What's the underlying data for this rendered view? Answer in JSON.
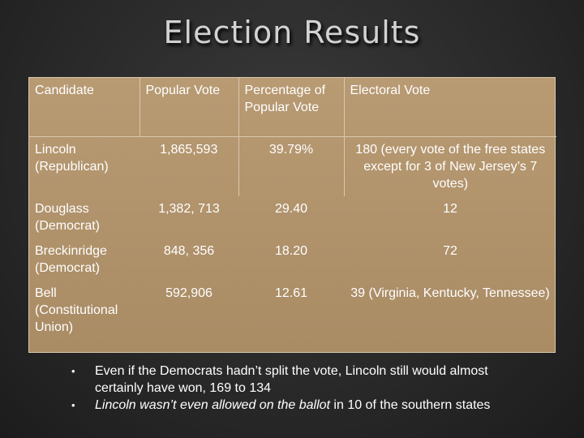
{
  "title": "Election Results",
  "table": {
    "headers": [
      "Candidate",
      "Popular Vote",
      "Percentage of Popular Vote",
      "Electoral Vote"
    ],
    "rows": [
      {
        "candidate": "Lincoln (Republican)",
        "popular_vote": "1,865,593",
        "percentage": "39.79%",
        "electoral_vote": "180 (every vote of the free states except for 3 of New Jersey’s 7 votes)"
      },
      {
        "candidate": "Douglass (Democrat)",
        "popular_vote": "1,382, 713",
        "percentage": "29.40",
        "electoral_vote": "12"
      },
      {
        "candidate": "Breckinridge (Democrat)",
        "popular_vote": "848, 356",
        "percentage": "18.20",
        "electoral_vote": "72"
      },
      {
        "candidate": "Bell (Constitutional Union)",
        "popular_vote": "592,906",
        "percentage": "12.61",
        "electoral_vote": "39 (Virginia, Kentucky, Tennessee)"
      }
    ]
  },
  "notes": {
    "bullet_char": "•",
    "note1": "Even if the Democrats hadn’t split the vote, Lincoln still would almost certainly have won, 169 to 134",
    "note2_italic": "Lincoln wasn’t even allowed on the ballot",
    "note2_rest": " in 10 of the southern states"
  }
}
